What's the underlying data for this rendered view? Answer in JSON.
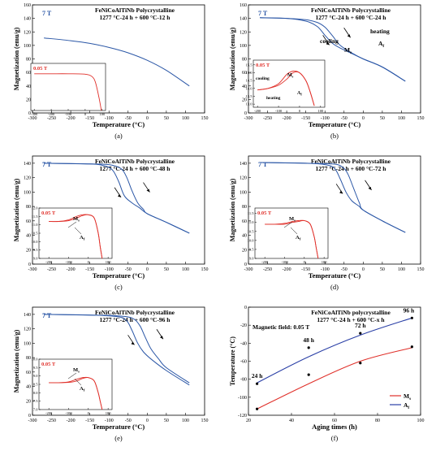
{
  "figure": {
    "panels": [
      {
        "id": "a",
        "caption": "(a)",
        "title_line1": "FeNiCoAlTiNb Polycrystalline",
        "title_line2": "1277 °C-24 h + 600 °C-12 h",
        "field_label": "7 T",
        "xlabel": "Temperature (°C)",
        "ylabel": "Magnetization (emu/g)",
        "xticks": [
          "-300",
          "-250",
          "-200",
          "-150",
          "-100",
          "-50",
          "0",
          "50",
          "100",
          "150"
        ],
        "yticks": [
          "0",
          "20",
          "40",
          "60",
          "80",
          "100",
          "120",
          "140",
          "160"
        ],
        "inset": {
          "field_label": "0.05 T",
          "xticks": [
            "-300",
            "-200",
            "-100",
            "0",
            "100"
          ],
          "yticks": []
        }
      },
      {
        "id": "b",
        "caption": "(b)",
        "title_line1": "FeNiCoAlTiNb Polycrystalline",
        "title_line2": "1277 °C-24 h + 600 °C-24 h",
        "field_label": "7 T",
        "xlabel": "Temperature (°C)",
        "ylabel": "Magnetization (emu/g)",
        "xticks": [
          "-300",
          "-250",
          "-200",
          "-150",
          "-100",
          "-50",
          "0",
          "50",
          "100",
          "150"
        ],
        "yticks": [
          "0",
          "20",
          "40",
          "60",
          "80",
          "100",
          "120",
          "140",
          "160"
        ],
        "annotations": [
          "heating",
          "cooling",
          "A_f",
          "M_s"
        ],
        "inset": {
          "field_label": "0.05 T",
          "xticks": [
            "-200",
            "-100",
            "0",
            "100"
          ],
          "yticks": [
            "13.0",
            "13.5",
            "14.0",
            "14.5",
            "15.0",
            "15.5"
          ],
          "annotations": [
            "cooling",
            "heating",
            "M_s",
            "A_f"
          ]
        }
      },
      {
        "id": "c",
        "caption": "(c)",
        "title_line1": "FeNiCoAlTiNb Polycrystalline",
        "title_line2": "1277 °C-24 h + 600 °C-48 h",
        "field_label": "7 T",
        "xlabel": "Temperature (°C)",
        "ylabel": "Magnetization (emu/g)",
        "xticks": [
          "-300",
          "-250",
          "-200",
          "-150",
          "-100",
          "-50",
          "0",
          "50",
          "100",
          "150"
        ],
        "yticks": [
          "0",
          "20",
          "40",
          "60",
          "80",
          "100",
          "120",
          "140"
        ],
        "inset": {
          "field_label": "0.05 T",
          "xticks": [
            "-200",
            "-100",
            "0",
            "100"
          ],
          "yticks": [
            "9.0",
            "9.5",
            "10.0",
            "10.5",
            "11.0",
            "11.5",
            "12.0"
          ],
          "annotations": [
            "M_s",
            "A_f"
          ]
        }
      },
      {
        "id": "d",
        "caption": "(d)",
        "title_line1": "FeNiCoAlTiNb Polycrystalline",
        "title_line2": "1277 °C-24 h + 600 °C-72 h",
        "field_label": "7 T",
        "xlabel": "Temperature (°C)",
        "ylabel": "Magnetization (emu/g)",
        "xticks": [
          "-300",
          "-250",
          "-200",
          "-150",
          "-100",
          "-50",
          "0",
          "50",
          "100",
          "150"
        ],
        "yticks": [
          "0",
          "20",
          "40",
          "60",
          "80",
          "100",
          "120",
          "140"
        ],
        "inset": {
          "field_label": "0.05 T",
          "xticks": [
            "-200",
            "-100",
            "0",
            "100"
          ],
          "yticks": [
            "9.0",
            "9.5",
            "10.0",
            "10.5",
            "11.0",
            "11.5"
          ],
          "annotations": [
            "M_s",
            "A_f"
          ]
        }
      },
      {
        "id": "e",
        "caption": "(e)",
        "title_line1": "FeNiCoAlTiNb Polycrystalline",
        "title_line2": "1277 °C-24 h + 600 °C-96 h",
        "field_label": "7 T",
        "xlabel": "Temperature (°C)",
        "ylabel": "Magnetization (emu/g)",
        "xticks": [
          "-300",
          "-250",
          "-200",
          "-150",
          "-100",
          "-50",
          "0",
          "50",
          "100",
          "150"
        ],
        "yticks": [
          "0",
          "20",
          "40",
          "60",
          "80",
          "100",
          "120",
          "140"
        ],
        "inset": {
          "field_label": "0.05 T",
          "xticks": [
            "-200",
            "-100",
            "0",
            "100"
          ],
          "yticks": [
            "7.0",
            "7.5",
            "8.0",
            "8.5",
            "9.0",
            "9.5",
            "10.0"
          ],
          "annotations": [
            "M_s",
            "A_f"
          ]
        }
      },
      {
        "id": "f",
        "caption": "(f)",
        "title_line1": "FeNiCoAlTiNb polycrystalline",
        "title_line2": "1277 °C-24 h + 600 °C-x h",
        "title_line3": "Magnetic field: 0.05 T",
        "xlabel": "Aging times (h)",
        "ylabel": "Temperature (°C)",
        "xticks": [
          "20",
          "40",
          "60",
          "80",
          "100"
        ],
        "yticks": [
          "-120",
          "-100",
          "-80",
          "-60",
          "-40",
          "-20",
          "0"
        ],
        "point_labels": [
          "24 h",
          "48 h",
          "72 h",
          "96 h"
        ],
        "legend": [
          "M_s",
          "A_f"
        ]
      }
    ]
  },
  "chart_data": [
    {
      "type": "line",
      "panel": "a",
      "xlim": [
        -300,
        150
      ],
      "ylim": [
        0,
        160
      ],
      "series": [
        {
          "name": "7 T",
          "color": "#2a56a6",
          "x": [
            -270,
            -200,
            -150,
            -100,
            -50,
            0,
            50,
            110
          ],
          "y": [
            111,
            107,
            103,
            97,
            89,
            78,
            63,
            40
          ]
        }
      ],
      "inset": {
        "type": "line",
        "xlim": [
          -320,
          120
        ],
        "series": [
          {
            "name": "0.05 T",
            "color": "#e0302a",
            "x": [
              -300,
              -200,
              -100,
              0,
              40,
              60,
              80,
              95
            ],
            "y": [
              0.78,
              0.78,
              0.78,
              0.77,
              0.72,
              0.6,
              0.3,
              0.0
            ]
          }
        ]
      }
    },
    {
      "type": "line",
      "panel": "b",
      "xlim": [
        -300,
        150
      ],
      "ylim": [
        0,
        160
      ],
      "series": [
        {
          "name": "cooling",
          "color": "#2a56a6",
          "x": [
            -270,
            -200,
            -150,
            -120,
            -100,
            -80,
            -60,
            -30,
            0,
            50,
            110
          ],
          "y": [
            141,
            140,
            136,
            128,
            115,
            103,
            96,
            88,
            80,
            68,
            47
          ]
        },
        {
          "name": "heating",
          "color": "#2a56a6",
          "x": [
            -270,
            -200,
            -150,
            -120,
            -100,
            -80,
            -60,
            -30,
            0,
            50,
            110
          ],
          "y": [
            141,
            140,
            138,
            134,
            127,
            114,
            100,
            89,
            80,
            68,
            47
          ]
        }
      ],
      "inset": {
        "type": "line",
        "xlim": [
          -220,
          120
        ],
        "ylim": [
          12.8,
          15.8
        ],
        "series": [
          {
            "name": "cooling",
            "color": "#e0302a",
            "x": [
              -200,
              -150,
              -100,
              -60,
              -30,
              0,
              30,
              50,
              70
            ],
            "y": [
              13.9,
              14.0,
              14.3,
              14.9,
              15.1,
              15.0,
              14.5,
              13.8,
              12.9
            ]
          },
          {
            "name": "heating",
            "color": "#e0302a",
            "x": [
              -200,
              -150,
              -100,
              -60,
              -30,
              0,
              30,
              50,
              70
            ],
            "y": [
              13.9,
              14.0,
              14.2,
              14.6,
              15.0,
              15.0,
              14.5,
              13.8,
              12.9
            ]
          }
        ]
      }
    },
    {
      "type": "line",
      "panel": "c",
      "xlim": [
        -300,
        150
      ],
      "ylim": [
        0,
        150
      ],
      "series": [
        {
          "name": "cooling",
          "color": "#2a56a6",
          "x": [
            -270,
            -150,
            -110,
            -90,
            -75,
            -60,
            -40,
            -20,
            0,
            50,
            110
          ],
          "y": [
            140,
            139,
            136,
            130,
            115,
            95,
            85,
            78,
            70,
            58,
            43
          ]
        },
        {
          "name": "heating",
          "color": "#2a56a6",
          "x": [
            -270,
            -150,
            -100,
            -70,
            -55,
            -40,
            -25,
            -10,
            0,
            50,
            110
          ],
          "y": [
            140,
            139,
            138,
            133,
            122,
            102,
            85,
            76,
            70,
            58,
            43
          ]
        }
      ],
      "inset": {
        "type": "line",
        "xlim": [
          -250,
          120
        ],
        "ylim": [
          9.0,
          12.0
        ],
        "series": [
          {
            "name": "cooling",
            "color": "#e0302a",
            "x": [
              -200,
              -150,
              -100,
              -60,
              -30,
              0,
              30,
              50,
              60,
              70
            ],
            "y": [
              11.2,
              11.2,
              11.3,
              11.5,
              11.6,
              11.6,
              11.4,
              10.5,
              9.7,
              9.0
            ]
          },
          {
            "name": "heating",
            "color": "#e0302a",
            "x": [
              -200,
              -150,
              -100,
              -60,
              -30,
              0,
              30,
              50,
              60,
              70
            ],
            "y": [
              11.2,
              11.2,
              11.25,
              11.4,
              11.55,
              11.6,
              11.4,
              10.5,
              9.7,
              9.0
            ]
          }
        ]
      }
    },
    {
      "type": "line",
      "panel": "d",
      "xlim": [
        -300,
        150
      ],
      "ylim": [
        0,
        150
      ],
      "series": [
        {
          "name": "cooling",
          "color": "#2a56a6",
          "x": [
            -270,
            -150,
            -100,
            -75,
            -60,
            -45,
            -30,
            -10,
            0,
            50,
            110
          ],
          "y": [
            141,
            140,
            138,
            133,
            118,
            100,
            88,
            80,
            75,
            60,
            44
          ]
        },
        {
          "name": "heating",
          "color": "#2a56a6",
          "x": [
            -270,
            -150,
            -80,
            -55,
            -40,
            -25,
            -10,
            0,
            50,
            110
          ],
          "y": [
            141,
            140,
            139,
            135,
            125,
            105,
            85,
            75,
            60,
            44
          ]
        }
      ],
      "inset": {
        "type": "line",
        "xlim": [
          -250,
          120
        ],
        "ylim": [
          9.0,
          11.8
        ],
        "series": [
          {
            "name": "cooling",
            "color": "#e0302a",
            "x": [
              -200,
              -150,
              -100,
              -60,
              -30,
              0,
              30,
              50,
              60,
              70
            ],
            "y": [
              10.9,
              10.9,
              10.95,
              11.05,
              11.1,
              11.1,
              10.9,
              10.2,
              9.6,
              9.0
            ]
          },
          {
            "name": "heating",
            "color": "#e0302a",
            "x": [
              -200,
              -150,
              -100,
              -60,
              -30,
              0,
              30,
              50,
              60,
              70
            ],
            "y": [
              10.9,
              10.9,
              10.9,
              11.0,
              11.05,
              11.1,
              10.9,
              10.2,
              9.6,
              9.0
            ]
          }
        ]
      }
    },
    {
      "type": "line",
      "panel": "e",
      "xlim": [
        -300,
        150
      ],
      "ylim": [
        0,
        150
      ],
      "series": [
        {
          "name": "cooling",
          "color": "#2a56a6",
          "x": [
            -270,
            -150,
            -80,
            -55,
            -40,
            -25,
            -10,
            10,
            50,
            110
          ],
          "y": [
            140,
            139,
            137,
            132,
            118,
            100,
            88,
            78,
            62,
            42
          ]
        },
        {
          "name": "heating",
          "color": "#2a56a6",
          "x": [
            -270,
            -150,
            -80,
            -40,
            -20,
            -5,
            10,
            30,
            50,
            110
          ],
          "y": [
            140,
            139,
            138,
            135,
            125,
            108,
            92,
            78,
            66,
            45
          ]
        }
      ],
      "inset": {
        "type": "line",
        "xlim": [
          -250,
          120
        ],
        "ylim": [
          7.0,
          10.0
        ],
        "series": [
          {
            "name": "cooling",
            "color": "#e0302a",
            "x": [
              -200,
              -150,
              -100,
              -60,
              -30,
              0,
              30,
              50,
              60,
              70
            ],
            "y": [
              8.6,
              8.6,
              8.65,
              8.8,
              8.9,
              8.9,
              8.7,
              8.0,
              7.5,
              7.0
            ]
          },
          {
            "name": "heating",
            "color": "#e0302a",
            "x": [
              -200,
              -150,
              -100,
              -60,
              -30,
              0,
              30,
              50,
              60,
              70
            ],
            "y": [
              8.6,
              8.6,
              8.62,
              8.7,
              8.85,
              8.9,
              8.7,
              8.0,
              7.5,
              7.0
            ]
          }
        ]
      }
    },
    {
      "type": "scatter",
      "panel": "f",
      "xlim": [
        20,
        100
      ],
      "ylim": [
        -120,
        0
      ],
      "series": [
        {
          "name": "M_s",
          "color": "#e0302a",
          "x": [
            24,
            48,
            72,
            96
          ],
          "y": [
            -113,
            -75,
            -62,
            -44
          ],
          "fit": [
            [
              24,
              -113
            ],
            [
              48,
              -85
            ],
            [
              72,
              -60
            ],
            [
              96,
              -45
            ]
          ]
        },
        {
          "name": "A_f",
          "color": "#2a3fa6",
          "x": [
            24,
            48,
            72,
            96
          ],
          "y": [
            -85,
            -45,
            -29,
            -12
          ],
          "fit": [
            [
              24,
              -84
            ],
            [
              48,
              -55
            ],
            [
              72,
              -31
            ],
            [
              96,
              -12
            ]
          ]
        }
      ]
    }
  ]
}
